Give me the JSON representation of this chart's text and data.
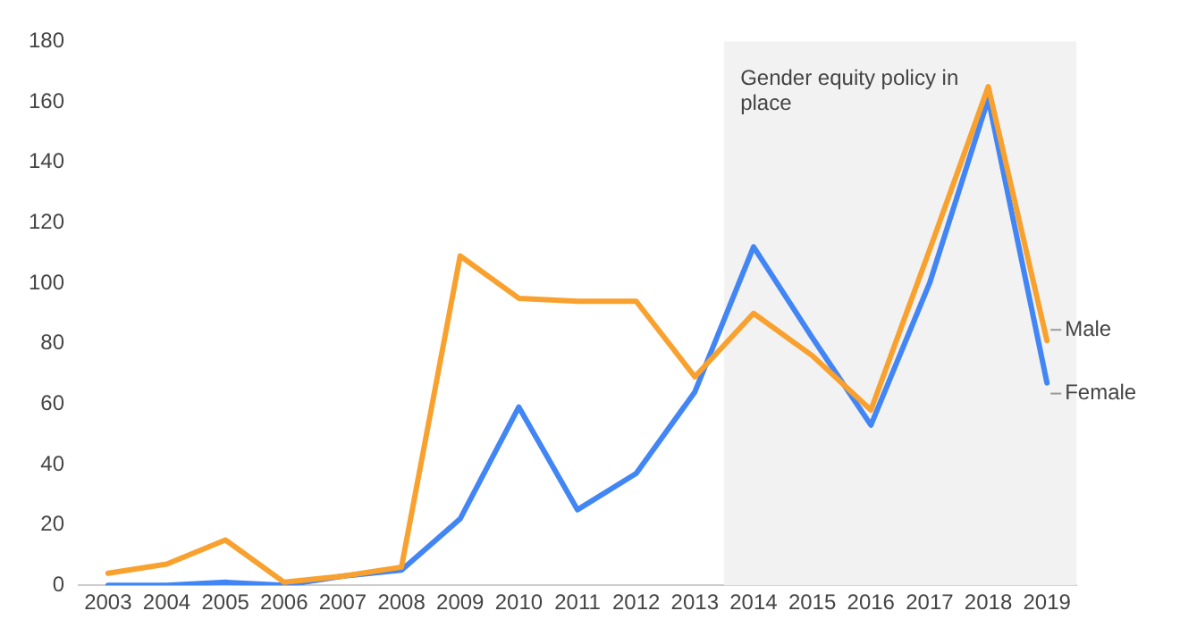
{
  "chart_data": {
    "type": "line",
    "x": [
      2003,
      2004,
      2005,
      2006,
      2007,
      2008,
      2009,
      2010,
      2011,
      2012,
      2013,
      2014,
      2015,
      2016,
      2017,
      2018,
      2019
    ],
    "series": [
      {
        "name": "Male",
        "color": "#f9a12e",
        "values": [
          4,
          7,
          15,
          1,
          3,
          6,
          109,
          95,
          94,
          94,
          69,
          90,
          76,
          58,
          111,
          165,
          81
        ]
      },
      {
        "name": "Female",
        "color": "#4285f4",
        "values": [
          0,
          0,
          1,
          0,
          3,
          5,
          22,
          59,
          25,
          37,
          64,
          112,
          82,
          53,
          100,
          161,
          67
        ]
      }
    ],
    "xlim": [
      2002.5,
      2019.5
    ],
    "xticks": [
      2003,
      2004,
      2005,
      2006,
      2007,
      2008,
      2009,
      2010,
      2011,
      2012,
      2013,
      2014,
      2015,
      2016,
      2017,
      2018,
      2019
    ],
    "ylim": [
      0,
      180
    ],
    "yticks": [
      0,
      20,
      40,
      60,
      80,
      100,
      120,
      140,
      160,
      180
    ],
    "bands": [
      {
        "axis": "x",
        "from": 2013.5,
        "to": 2019.5,
        "label": "Gender equity policy in place",
        "color": "#f2f2f2"
      }
    ],
    "grid": false,
    "legend": false,
    "marker": "none",
    "line_style": "solid"
  }
}
